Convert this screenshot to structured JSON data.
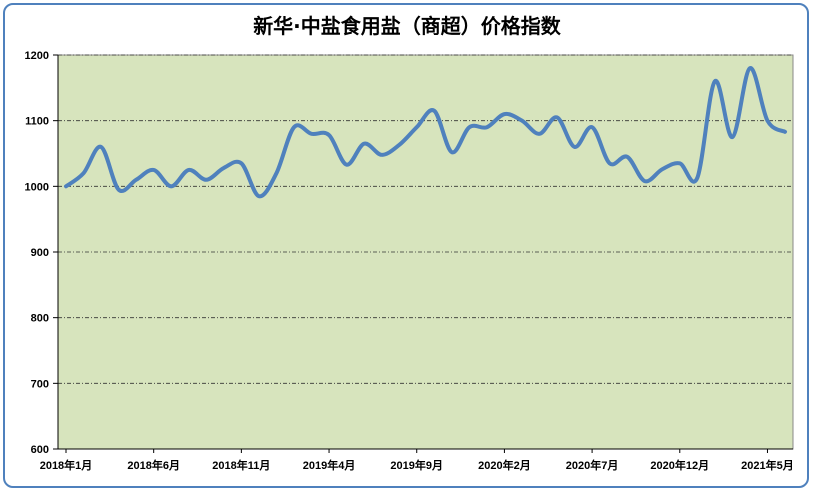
{
  "chart_data": {
    "type": "line",
    "title": "新华·中盐食用盐（商超）价格指数",
    "xlabel": "",
    "ylabel": "",
    "ylim": [
      600,
      1200
    ],
    "yticks": [
      600,
      700,
      800,
      900,
      1000,
      1100,
      1200
    ],
    "xtick_labels": [
      "2018年1月",
      "2018年6月",
      "2018年11月",
      "2019年4月",
      "2019年9月",
      "2020年2月",
      "2020年7月",
      "2020年12月",
      "2021年5月"
    ],
    "grid": true,
    "plot_background": "#d7e4bd",
    "line_color": "#4f81bd",
    "series": [
      {
        "values": [
          1000,
          1020,
          1060,
          995,
          1010,
          1025,
          1000,
          1025,
          1010,
          1028,
          1035,
          985,
          1020,
          1090,
          1080,
          1078,
          1033,
          1065,
          1048,
          1063,
          1090,
          1115,
          1052,
          1090,
          1090,
          1110,
          1100,
          1080,
          1105,
          1060,
          1090,
          1035,
          1045,
          1008,
          1026,
          1035,
          1013,
          1160,
          1075,
          1180,
          1100,
          1083
        ]
      }
    ]
  }
}
